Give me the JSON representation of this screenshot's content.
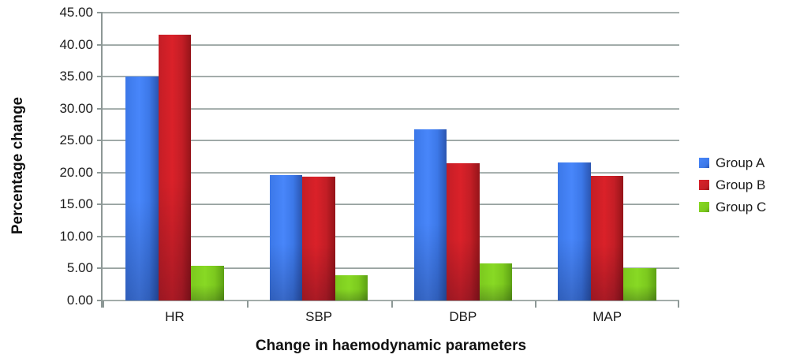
{
  "chart_data": {
    "type": "bar",
    "title": "",
    "categories": [
      "HR",
      "SBP",
      "DBP",
      "MAP"
    ],
    "series": [
      {
        "name": "Group A",
        "color": "#3c78e8",
        "color_light": "#4886fa",
        "color_dark": "#2b55b0",
        "values": [
          35.0,
          19.6,
          26.7,
          21.6
        ]
      },
      {
        "name": "Group B",
        "color": "#c41e26",
        "color_light": "#da2129",
        "color_dark": "#951419",
        "values": [
          41.5,
          19.4,
          21.4,
          19.5
        ]
      },
      {
        "name": "Group C",
        "color": "#7cc91e",
        "color_light": "#88d924",
        "color_dark": "#5da114",
        "values": [
          5.4,
          4.0,
          5.8,
          5.1
        ]
      }
    ],
    "xlabel": "Change in haemodynamic parameters",
    "ylabel": "Percentage change",
    "ylim": [
      0,
      45
    ],
    "y_tick_step": 5,
    "y_tick_labels": [
      "0.00",
      "5.00",
      "10.00",
      "15.00",
      "20.00",
      "25.00",
      "30.00",
      "35.00",
      "40.00",
      "45.00"
    ],
    "grid": true,
    "legend_position": "right"
  }
}
